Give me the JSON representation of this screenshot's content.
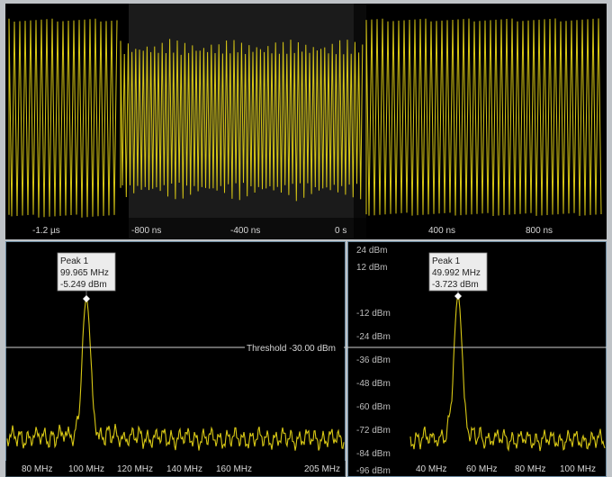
{
  "colors": {
    "trace": "#d8c815",
    "background": "#000000",
    "panel_border": "#6b8aa0",
    "threshold": "#cfcfcf"
  },
  "time_panel": {
    "tick_labels": [
      "-1.2 µs",
      "-800 ns",
      "-400 ns",
      "0 s",
      "400 ns",
      "800 ns"
    ]
  },
  "spectrum_left": {
    "threshold_label": "Threshold -30.00 dBm",
    "peak": {
      "title": "Peak 1",
      "freq": "99.965 MHz",
      "level": "-5.249 dBm"
    },
    "x_ticks": [
      "80 MHz",
      "100 MHz",
      "120 MHz",
      "140 MHz",
      "160 MHz",
      "205 MHz"
    ]
  },
  "spectrum_right": {
    "peak": {
      "title": "Peak 1",
      "freq": "49.992 MHz",
      "level": "-3.723 dBm"
    },
    "y_ticks": [
      "24 dBm",
      "12 dBm",
      "-12 dBm",
      "-24 dBm",
      "-36 dBm",
      "-48 dBm",
      "-60 dBm",
      "-72 dBm",
      "-84 dBm",
      "-96 dBm"
    ],
    "x_ticks": [
      "40 MHz",
      "60 MHz",
      "80 MHz",
      "100 MHz"
    ]
  },
  "chart_data": [
    {
      "type": "line",
      "title": "",
      "xlabel": "",
      "ylabel": "",
      "x_tick_labels": [
        "-1.2 µs",
        "-800 ns",
        "-400 ns",
        "0 s",
        "400 ns",
        "800 ns"
      ],
      "series": [
        {
          "values": []
        }
      ]
    },
    {
      "type": "line",
      "title": "",
      "xlabel": "",
      "ylabel": "",
      "x_tick_labels": [
        "80 MHz",
        "100 MHz",
        "120 MHz",
        "140 MHz",
        "160 MHz",
        "205 MHz"
      ],
      "peak": {
        "x": 99.965,
        "y": -5.249
      },
      "threshold": -30.0
    },
    {
      "type": "line",
      "title": "",
      "xlabel": "",
      "ylabel": "",
      "x_tick_labels": [
        "40 MHz",
        "60 MHz",
        "80 MHz",
        "100 MHz"
      ],
      "y_tick_labels": [
        "24 dBm",
        "12 dBm",
        "-12 dBm",
        "-24 dBm",
        "-36 dBm",
        "-48 dBm",
        "-60 dBm",
        "-72 dBm",
        "-84 dBm",
        "-96 dBm"
      ],
      "peak": {
        "x": 49.992,
        "y": -3.723
      },
      "threshold": -30.0
    }
  ]
}
